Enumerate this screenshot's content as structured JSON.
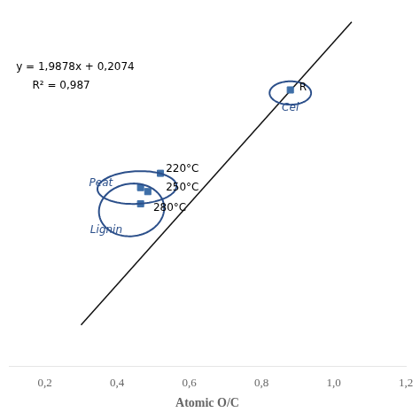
{
  "chart_data": {
    "type": "scatter",
    "xlabel": "Atomic O/C",
    "xlim": [
      0.1,
      1.2
    ],
    "xticks": [
      {
        "value": 0.2,
        "label": "0,2"
      },
      {
        "value": 0.4,
        "label": "0,4"
      },
      {
        "value": 0.6,
        "label": "0,6"
      },
      {
        "value": 0.8,
        "label": "0,8"
      },
      {
        "value": 1.0,
        "label": "1,0"
      },
      {
        "value": 1.2,
        "label": "1,2"
      }
    ],
    "ylim": [
      0.6,
      2.35
    ],
    "tick_labels": "x",
    "grid": false,
    "series": [
      {
        "type": "scatter",
        "color": "#3e6fa8",
        "marker": "square",
        "x": [
          0.465,
          0.52,
          0.485,
          0.465,
          0.88
        ],
        "values": [
          1.48,
          1.55,
          1.46,
          1.4,
          1.96
        ]
      },
      {
        "type": "line",
        "color": "#111111",
        "line_style": "solid",
        "x": [
          0.3,
          1.05
        ],
        "values": [
          0.80374,
          2.29459
        ]
      }
    ],
    "ellipses": [
      {
        "label": "Lignin",
        "x": 0.44,
        "y": 1.37,
        "width": 0.18,
        "height": 0.26,
        "angle": -5,
        "label_x": 0.37,
        "label_y": 1.27,
        "color": "#2b4f8a"
      },
      {
        "label": "Peat",
        "x": 0.455,
        "y": 1.48,
        "width": 0.22,
        "height": 0.16,
        "angle": 8,
        "label_x": 0.355,
        "label_y": 1.5,
        "color": "#2b4f8a"
      },
      {
        "label": "Cel",
        "x": 0.88,
        "y": 1.945,
        "width": 0.115,
        "height": 0.115,
        "angle": 0,
        "label_x": 0.88,
        "label_y": 1.87,
        "color": "#2b4f8a"
      }
    ],
    "annotations": [
      {
        "text": "220°C",
        "x": 0.535,
        "y": 1.57
      },
      {
        "text": "250°C",
        "x": 0.535,
        "y": 1.48
      },
      {
        "text": "280°C",
        "x": 0.5,
        "y": 1.38
      },
      {
        "text": "R",
        "x": 0.905,
        "y": 1.97
      },
      {
        "text": "y = 1,9878x + 0,2074",
        "x": 0.12,
        "y": 2.07
      },
      {
        "text": "R² = 0,987",
        "x": 0.165,
        "y": 1.98
      }
    ]
  }
}
